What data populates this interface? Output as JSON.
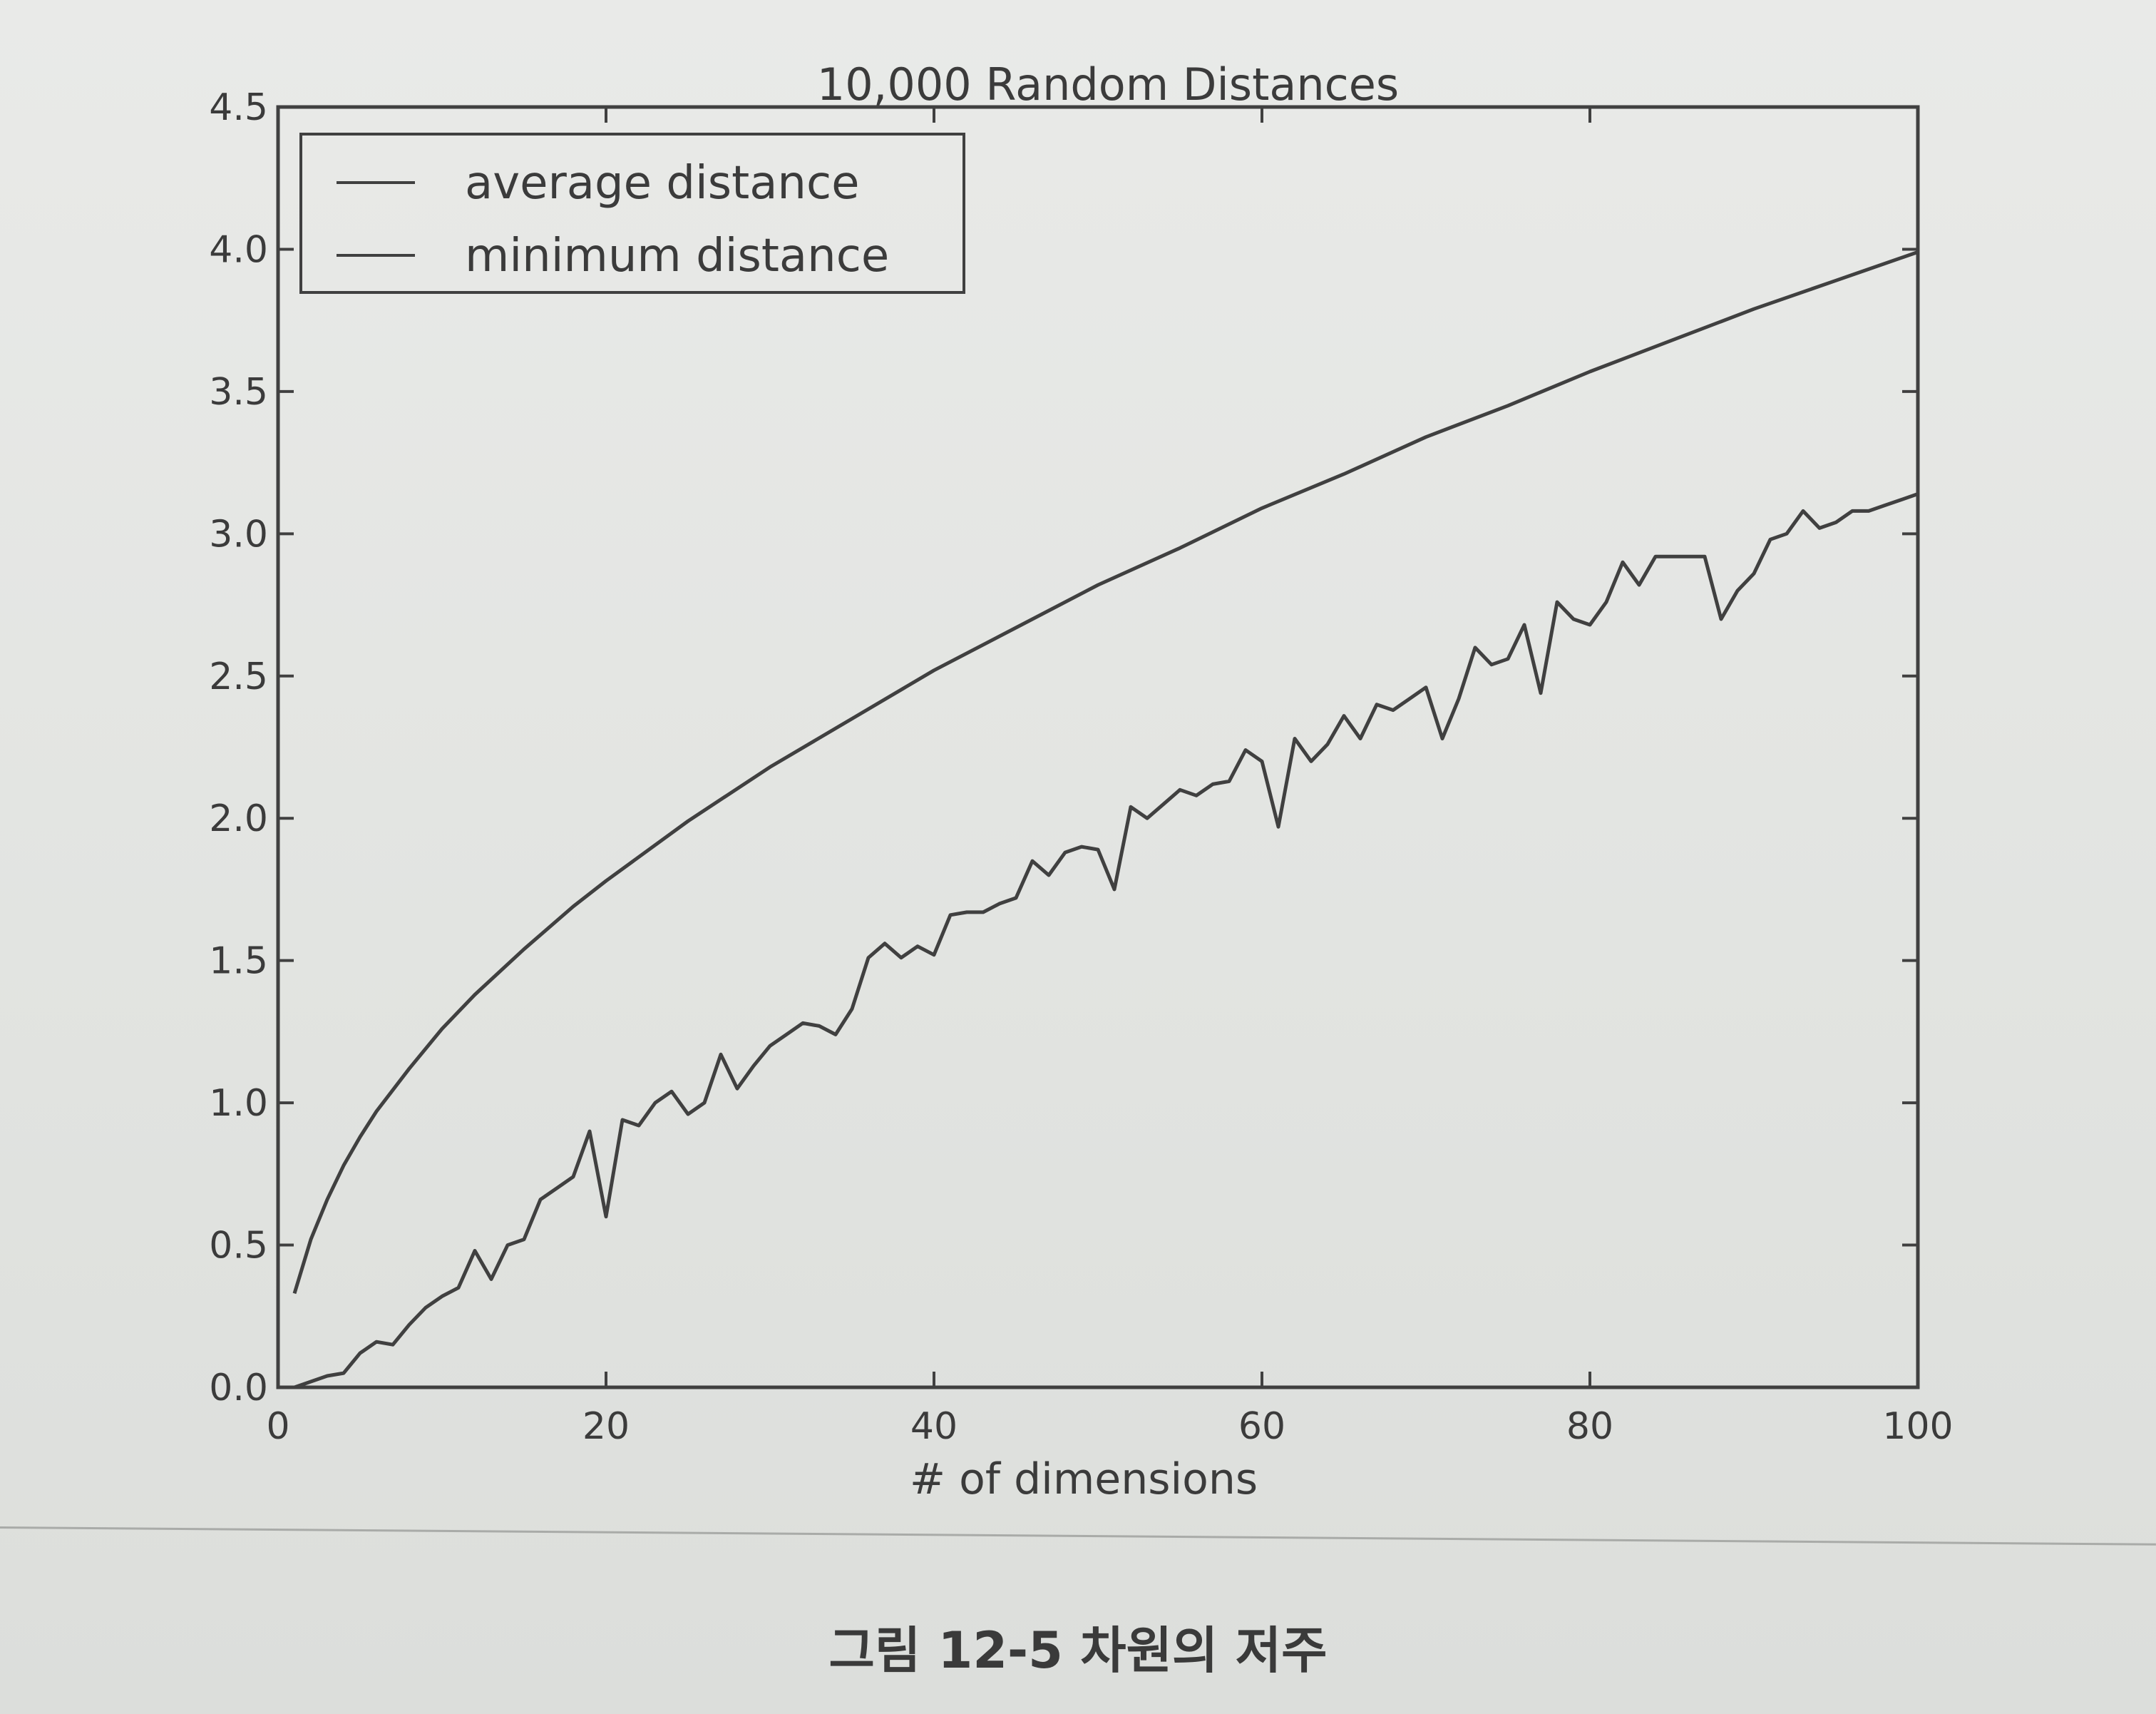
{
  "chart_data": {
    "type": "line",
    "title": "10,000 Random Distances",
    "xlabel": "# of dimensions",
    "ylabel": "",
    "xlim": [
      0,
      100
    ],
    "ylim": [
      0.0,
      4.5
    ],
    "xticks": [
      "0",
      "20",
      "40",
      "60",
      "80",
      "100"
    ],
    "yticks": [
      "0.0",
      "0.5",
      "1.0",
      "1.5",
      "2.0",
      "2.5",
      "3.0",
      "3.5",
      "4.0",
      "4.5"
    ],
    "legend_position": "top-left",
    "grid": false,
    "line_color": "#404040",
    "series": [
      {
        "name": "average distance",
        "x": [
          1,
          2,
          3,
          4,
          5,
          6,
          8,
          10,
          12,
          15,
          18,
          20,
          25,
          30,
          35,
          40,
          45,
          50,
          55,
          60,
          65,
          70,
          75,
          80,
          85,
          90,
          95,
          100
        ],
        "values": [
          0.33,
          0.52,
          0.66,
          0.78,
          0.88,
          0.97,
          1.12,
          1.26,
          1.38,
          1.54,
          1.69,
          1.78,
          1.99,
          2.18,
          2.35,
          2.52,
          2.67,
          2.82,
          2.95,
          3.09,
          3.21,
          3.34,
          3.45,
          3.57,
          3.68,
          3.79,
          3.89,
          3.99
        ]
      },
      {
        "name": "minimum distance",
        "x": [
          0,
          1,
          2,
          3,
          4,
          5,
          6,
          7,
          8,
          9,
          10,
          11,
          12,
          13,
          14,
          15,
          16,
          17,
          18,
          19,
          20,
          21,
          22,
          23,
          24,
          25,
          26,
          27,
          28,
          29,
          30,
          31,
          32,
          33,
          34,
          35,
          36,
          37,
          38,
          39,
          40,
          41,
          42,
          43,
          44,
          45,
          46,
          47,
          48,
          49,
          50,
          51,
          52,
          53,
          54,
          55,
          56,
          57,
          58,
          59,
          60,
          61,
          62,
          63,
          64,
          65,
          66,
          67,
          68,
          69,
          70,
          71,
          72,
          73,
          74,
          75,
          76,
          77,
          78,
          79,
          80,
          81,
          82,
          83,
          84,
          85,
          86,
          87,
          88,
          89,
          90,
          91,
          92,
          93,
          94,
          95,
          96,
          97,
          98,
          99,
          100
        ],
        "values": [
          0.0,
          0.0,
          0.02,
          0.04,
          0.05,
          0.12,
          0.16,
          0.15,
          0.22,
          0.28,
          0.32,
          0.35,
          0.48,
          0.38,
          0.5,
          0.52,
          0.66,
          0.7,
          0.74,
          0.9,
          0.6,
          0.94,
          0.92,
          1.0,
          1.04,
          0.96,
          1.0,
          1.17,
          1.05,
          1.13,
          1.2,
          1.24,
          1.28,
          1.27,
          1.24,
          1.33,
          1.51,
          1.56,
          1.51,
          1.55,
          1.52,
          1.66,
          1.67,
          1.67,
          1.7,
          1.72,
          1.85,
          1.8,
          1.88,
          1.9,
          1.89,
          1.75,
          2.04,
          2.0,
          2.05,
          2.1,
          2.08,
          2.12,
          2.13,
          2.24,
          2.2,
          1.97,
          2.28,
          2.2,
          2.26,
          2.36,
          2.28,
          2.4,
          2.38,
          2.42,
          2.46,
          2.28,
          2.42,
          2.6,
          2.54,
          2.56,
          2.68,
          2.44,
          2.76,
          2.7,
          2.68,
          2.76,
          2.9,
          2.82,
          2.92,
          2.92,
          2.92,
          2.92,
          2.7,
          2.8,
          2.86,
          2.98,
          3.0,
          3.08,
          3.02,
          3.04,
          3.08,
          3.08,
          3.1,
          3.12,
          3.14
        ]
      }
    ]
  },
  "caption": "그림 12-5 차원의 저주"
}
